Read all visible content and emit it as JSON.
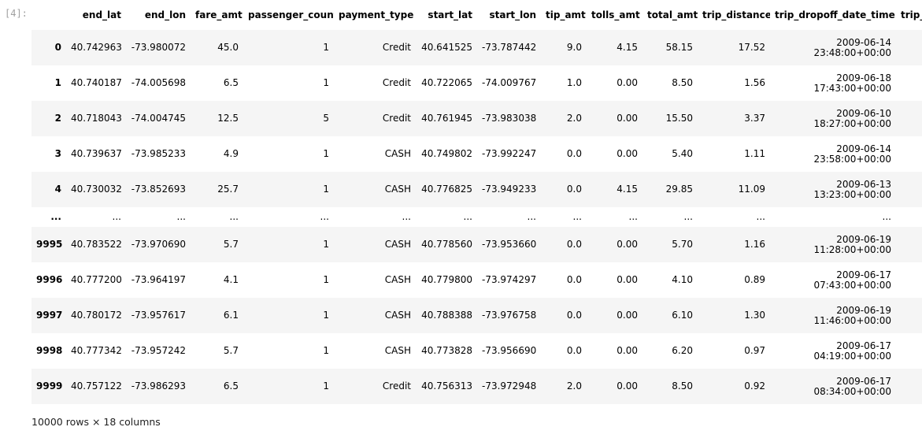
{
  "prompt": "[4]:",
  "table": {
    "columns": [
      "",
      "end_lat",
      "end_lon",
      "fare_amt",
      "passenger_count",
      "payment_type",
      "start_lat",
      "start_lon",
      "tip_amt",
      "tolls_amt",
      "total_amt",
      "trip_distance",
      "trip_dropoff_date_time",
      "trip_"
    ],
    "rows": [
      [
        "0",
        "40.742963",
        "-73.980072",
        "45.0",
        "1",
        "Credit",
        "40.641525",
        "-73.787442",
        "9.0",
        "4.15",
        "58.15",
        "17.52",
        "2009-06-14",
        "23:48:00+00:00"
      ],
      [
        "1",
        "40.740187",
        "-74.005698",
        "6.5",
        "1",
        "Credit",
        "40.722065",
        "-74.009767",
        "1.0",
        "0.00",
        "8.50",
        "1.56",
        "2009-06-18",
        "17:43:00+00:00"
      ],
      [
        "2",
        "40.718043",
        "-74.004745",
        "12.5",
        "5",
        "Credit",
        "40.761945",
        "-73.983038",
        "2.0",
        "0.00",
        "15.50",
        "3.37",
        "2009-06-10",
        "18:27:00+00:00"
      ],
      [
        "3",
        "40.739637",
        "-73.985233",
        "4.9",
        "1",
        "CASH",
        "40.749802",
        "-73.992247",
        "0.0",
        "0.00",
        "5.40",
        "1.11",
        "2009-06-14",
        "23:58:00+00:00"
      ],
      [
        "4",
        "40.730032",
        "-73.852693",
        "25.7",
        "1",
        "CASH",
        "40.776825",
        "-73.949233",
        "0.0",
        "4.15",
        "29.85",
        "11.09",
        "2009-06-13",
        "13:23:00+00:00"
      ],
      [
        "...",
        "...",
        "...",
        "...",
        "...",
        "...",
        "...",
        "...",
        "...",
        "...",
        "...",
        "...",
        "...",
        ""
      ],
      [
        "9995",
        "40.783522",
        "-73.970690",
        "5.7",
        "1",
        "CASH",
        "40.778560",
        "-73.953660",
        "0.0",
        "0.00",
        "5.70",
        "1.16",
        "2009-06-19",
        "11:28:00+00:00"
      ],
      [
        "9996",
        "40.777200",
        "-73.964197",
        "4.1",
        "1",
        "CASH",
        "40.779800",
        "-73.974297",
        "0.0",
        "0.00",
        "4.10",
        "0.89",
        "2009-06-17",
        "07:43:00+00:00"
      ],
      [
        "9997",
        "40.780172",
        "-73.957617",
        "6.1",
        "1",
        "CASH",
        "40.788388",
        "-73.976758",
        "0.0",
        "0.00",
        "6.10",
        "1.30",
        "2009-06-19",
        "11:46:00+00:00"
      ],
      [
        "9998",
        "40.777342",
        "-73.957242",
        "5.7",
        "1",
        "CASH",
        "40.773828",
        "-73.956690",
        "0.0",
        "0.00",
        "6.20",
        "0.97",
        "2009-06-17",
        "04:19:00+00:00"
      ],
      [
        "9999",
        "40.757122",
        "-73.986293",
        "6.5",
        "1",
        "Credit",
        "40.756313",
        "-73.972948",
        "2.0",
        "0.00",
        "8.50",
        "0.92",
        "2009-06-17",
        "08:34:00+00:00"
      ]
    ]
  },
  "shape_text": "10000 rows × 18 columns"
}
